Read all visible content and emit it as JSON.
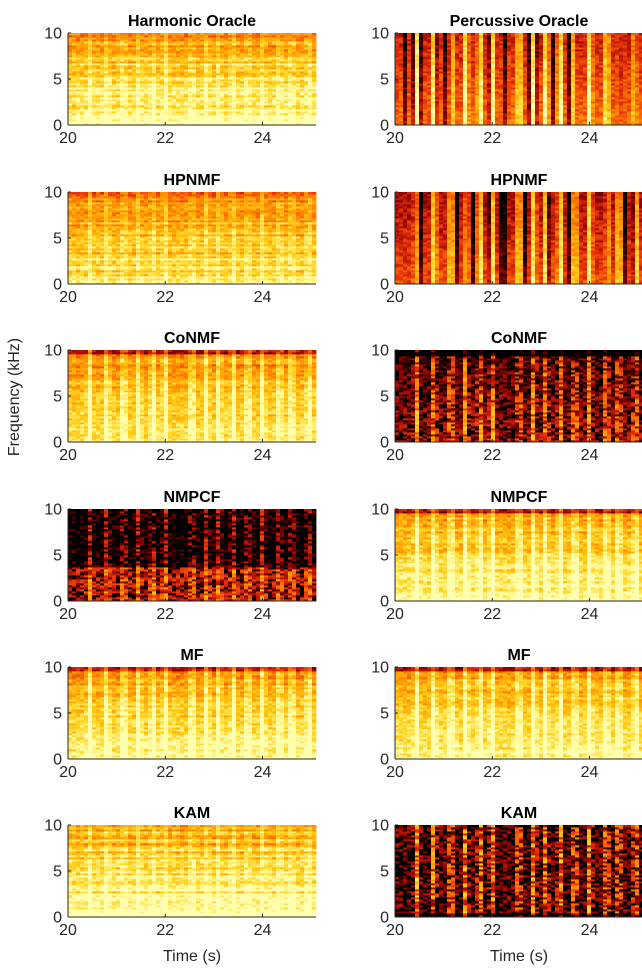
{
  "figure": {
    "ylabel": "Frequency (kHz)",
    "xlabel": "Time (s)",
    "colormap": "hot",
    "colormap_stops": [
      "#000000",
      "#8b0000",
      "#e8330a",
      "#ff8c00",
      "#ffd21a",
      "#ffffb0"
    ]
  },
  "chart_data": [
    {
      "type": "heatmap",
      "title": "Harmonic Oracle",
      "xlim": [
        20,
        25.1
      ],
      "ylim": [
        0,
        10
      ],
      "xticks": [
        20,
        22,
        24
      ],
      "yticks": [
        0,
        5,
        10
      ],
      "xlabel": "",
      "ylabel": "",
      "z_unit": "",
      "style": "harmonic",
      "density": 0.78
    },
    {
      "type": "heatmap",
      "title": "Percussive Oracle",
      "xlim": [
        20,
        25.1
      ],
      "ylim": [
        0,
        10
      ],
      "xticks": [
        20,
        22,
        24
      ],
      "yticks": [
        0,
        5,
        10
      ],
      "xlabel": "",
      "ylabel": "",
      "z_unit": "",
      "style": "percussive",
      "density": 0.68
    },
    {
      "type": "heatmap",
      "title": "HPNMF",
      "xlim": [
        20,
        25.1
      ],
      "ylim": [
        0,
        10
      ],
      "xticks": [
        20,
        22,
        24
      ],
      "yticks": [
        0,
        5,
        10
      ],
      "xlabel": "",
      "ylabel": "",
      "z_unit": "",
      "style": "harmonic",
      "density": 0.7
    },
    {
      "type": "heatmap",
      "title": "HPNMF",
      "xlim": [
        20,
        25.1
      ],
      "ylim": [
        0,
        10
      ],
      "xticks": [
        20,
        22,
        24
      ],
      "yticks": [
        0,
        5,
        10
      ],
      "xlabel": "",
      "ylabel": "",
      "z_unit": "",
      "style": "percussive",
      "density": 0.6
    },
    {
      "type": "heatmap",
      "title": "CoNMF",
      "xlim": [
        20,
        25.1
      ],
      "ylim": [
        0,
        10
      ],
      "xticks": [
        20,
        22,
        24
      ],
      "yticks": [
        0,
        5,
        10
      ],
      "xlabel": "",
      "ylabel": "",
      "z_unit": "",
      "style": "mixed",
      "density": 0.74
    },
    {
      "type": "heatmap",
      "title": "CoNMF",
      "xlim": [
        20,
        25.1
      ],
      "ylim": [
        0,
        10
      ],
      "xticks": [
        20,
        22,
        24
      ],
      "yticks": [
        0,
        5,
        10
      ],
      "xlabel": "",
      "ylabel": "",
      "z_unit": "",
      "style": "sparse",
      "density": 0.42
    },
    {
      "type": "heatmap",
      "title": "NMPCF",
      "xlim": [
        20,
        25.1
      ],
      "ylim": [
        0,
        10
      ],
      "xticks": [
        20,
        22,
        24
      ],
      "yticks": [
        0,
        5,
        10
      ],
      "xlabel": "",
      "ylabel": "",
      "z_unit": "",
      "style": "dark",
      "density": 0.3
    },
    {
      "type": "heatmap",
      "title": "NMPCF",
      "xlim": [
        20,
        25.1
      ],
      "ylim": [
        0,
        10
      ],
      "xticks": [
        20,
        22,
        24
      ],
      "yticks": [
        0,
        5,
        10
      ],
      "xlabel": "",
      "ylabel": "",
      "z_unit": "",
      "style": "mixed",
      "density": 0.8
    },
    {
      "type": "heatmap",
      "title": "MF",
      "xlim": [
        20,
        25.1
      ],
      "ylim": [
        0,
        10
      ],
      "xticks": [
        20,
        22,
        24
      ],
      "yticks": [
        0,
        5,
        10
      ],
      "xlabel": "",
      "ylabel": "",
      "z_unit": "",
      "style": "mixed",
      "density": 0.78
    },
    {
      "type": "heatmap",
      "title": "MF",
      "xlim": [
        20,
        25.1
      ],
      "ylim": [
        0,
        10
      ],
      "xticks": [
        20,
        22,
        24
      ],
      "yticks": [
        0,
        5,
        10
      ],
      "xlabel": "",
      "ylabel": "",
      "z_unit": "",
      "style": "mixed",
      "density": 0.78
    },
    {
      "type": "heatmap",
      "title": "KAM",
      "xlim": [
        20,
        25.1
      ],
      "ylim": [
        0,
        10
      ],
      "xticks": [
        20,
        22,
        24
      ],
      "yticks": [
        0,
        5,
        10
      ],
      "xlabel": "",
      "ylabel": "",
      "z_unit": "",
      "style": "harmonic",
      "density": 0.8
    },
    {
      "type": "heatmap",
      "title": "KAM",
      "xlim": [
        20,
        25.1
      ],
      "ylim": [
        0,
        10
      ],
      "xticks": [
        20,
        22,
        24
      ],
      "yticks": [
        0,
        5,
        10
      ],
      "xlabel": "",
      "ylabel": "",
      "z_unit": "",
      "style": "blocky",
      "density": 0.45
    }
  ]
}
